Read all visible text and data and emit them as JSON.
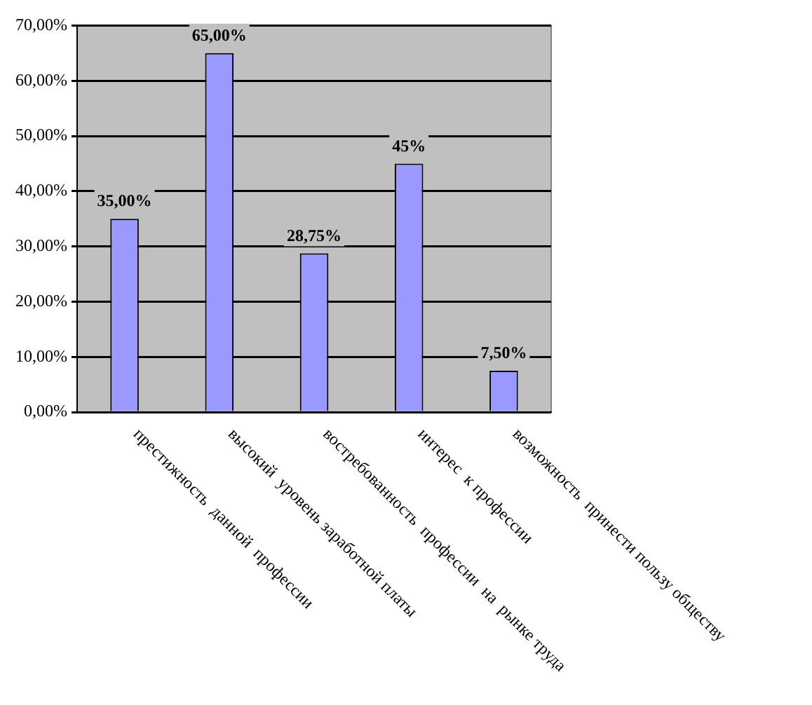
{
  "chart_data": {
    "type": "bar",
    "categories": [
      "престижность  данной  профессии",
      "высокий  уровень заработной платы",
      "востребованность  профессии  на  рынке труда",
      "интерес  к профессии",
      "возможность  принести пользу обществу"
    ],
    "values": [
      35,
      65,
      28.75,
      45,
      7.5
    ],
    "value_labels": [
      "35,00%",
      "65,00%",
      "28,75%",
      "45%",
      "7,50%"
    ],
    "color": "#9999ff",
    "ylim": [
      0,
      70
    ],
    "yticks": [
      {
        "value": 0,
        "label": "0,00%"
      },
      {
        "value": 10,
        "label": "10,00%"
      },
      {
        "value": 20,
        "label": "20,00%"
      },
      {
        "value": 30,
        "label": "30,00%"
      },
      {
        "value": 40,
        "label": "40,00%"
      },
      {
        "value": 50,
        "label": "50,00%"
      },
      {
        "value": 60,
        "label": "60,00%"
      },
      {
        "value": 70,
        "label": "70,00%"
      }
    ],
    "grid": "y",
    "legend": false
  }
}
